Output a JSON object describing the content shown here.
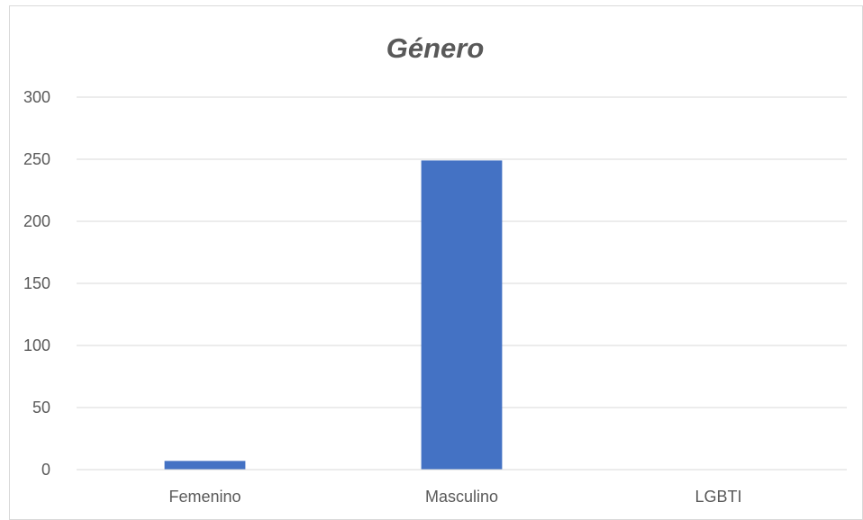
{
  "chart_data": {
    "type": "bar",
    "title": "Género",
    "categories": [
      "Femenino",
      "Masculino",
      "LGBTI"
    ],
    "series": [
      {
        "values": [
          7,
          249,
          0
        ]
      }
    ],
    "yticks": [
      "0",
      "50",
      "100",
      "150",
      "200",
      "250",
      "300"
    ],
    "ylim": [
      0,
      300
    ],
    "grid": true,
    "legend": "none",
    "bar_color": "#4472c4"
  }
}
